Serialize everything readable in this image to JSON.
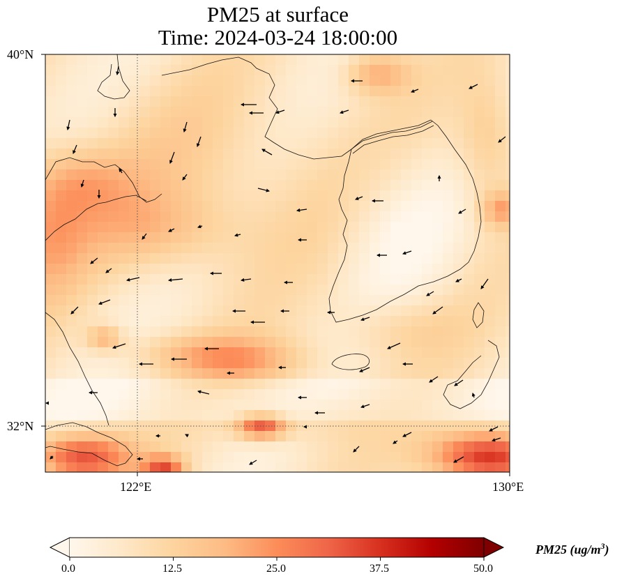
{
  "title": {
    "line1": "PM25 at surface",
    "line2": "Time: 2024-03-24 18:00:00"
  },
  "map": {
    "variable": "PM25",
    "lon_range": [
      120,
      130
    ],
    "lat_range": [
      31,
      40
    ],
    "lat_ticks": [
      {
        "value": 40,
        "label": "40°N"
      },
      {
        "value": 32,
        "label": "32°N"
      }
    ],
    "lon_ticks": [
      {
        "value": 122,
        "label": "122°E"
      },
      {
        "value": 130,
        "label": "130°E"
      }
    ],
    "gridlines": "dotted",
    "coastlines": true,
    "wind_vectors": true
  },
  "colorbar": {
    "label_text": "PM25 (ug/m",
    "label_exp": "3",
    "label_close": ")",
    "colormap": "OrRd",
    "range": [
      0,
      50
    ],
    "extend": "both",
    "ticks": [
      "0.0",
      "12.5",
      "25.0",
      "37.5",
      "50.0"
    ],
    "colors": [
      "#fff7ec",
      "#fee8c8",
      "#fdd49e",
      "#fdbb84",
      "#fc8d59",
      "#ef6548",
      "#d7301f",
      "#b30000",
      "#7f0000"
    ]
  }
}
